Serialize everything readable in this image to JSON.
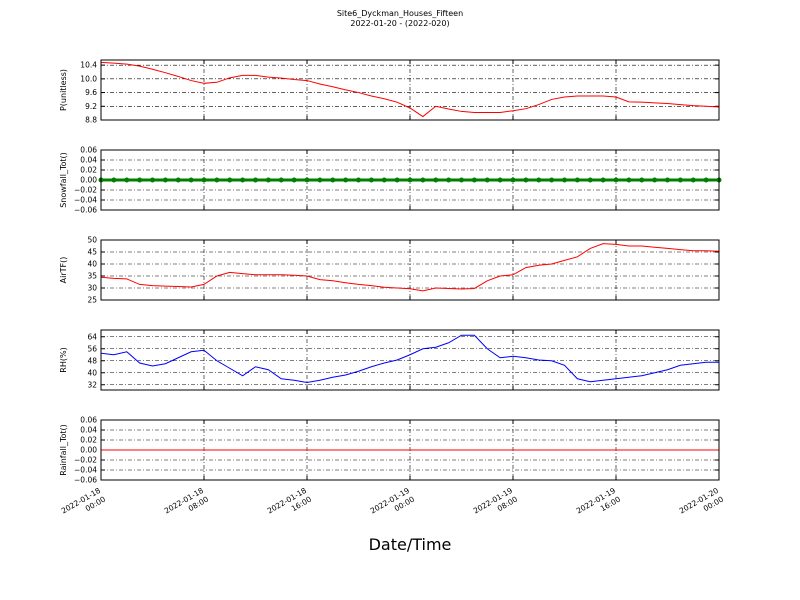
{
  "chart_data": [
    {
      "type": "line",
      "title": "Site6_Dyckman_Houses_Fifteen",
      "subtitle": "2022-01-20 - (2022-020)",
      "ylabel": "P(unitless)",
      "grid": true,
      "xlim": [
        "2022-01-18 00:00",
        "2022-01-20 00:00"
      ],
      "xticks": [
        "2022-01-18 00:00",
        "2022-01-18 08:00",
        "2022-01-18 16:00",
        "2022-01-19 00:00",
        "2022-01-19 08:00",
        "2022-01-19 16:00",
        "2022-01-20 00:00"
      ],
      "ylim": [
        8.8,
        10.55
      ],
      "yticks": [
        8.8,
        9.2,
        9.6,
        {
          "value": 10.0,
          "label": "10.0"
        },
        10.4
      ],
      "x": [
        "2022-01-18 00:00",
        "2022-01-18 01:00",
        "2022-01-18 02:00",
        "2022-01-18 03:00",
        "2022-01-18 04:00",
        "2022-01-18 05:00",
        "2022-01-18 06:00",
        "2022-01-18 07:00",
        "2022-01-18 08:00",
        "2022-01-18 09:00",
        "2022-01-18 10:00",
        "2022-01-18 11:00",
        "2022-01-18 12:00",
        "2022-01-18 13:00",
        "2022-01-18 14:00",
        "2022-01-18 15:00",
        "2022-01-18 16:00",
        "2022-01-18 17:00",
        "2022-01-18 18:00",
        "2022-01-18 19:00",
        "2022-01-18 20:00",
        "2022-01-18 21:00",
        "2022-01-18 22:00",
        "2022-01-18 23:00",
        "2022-01-19 00:00",
        "2022-01-19 01:00",
        "2022-01-19 02:00",
        "2022-01-19 03:00",
        "2022-01-19 04:00",
        "2022-01-19 05:00",
        "2022-01-19 06:00",
        "2022-01-19 07:00",
        "2022-01-19 08:00",
        "2022-01-19 09:00",
        "2022-01-19 10:00",
        "2022-01-19 11:00",
        "2022-01-19 12:00",
        "2022-01-19 13:00",
        "2022-01-19 14:00",
        "2022-01-19 15:00",
        "2022-01-19 16:00",
        "2022-01-19 17:00",
        "2022-01-19 18:00",
        "2022-01-19 19:00",
        "2022-01-19 20:00",
        "2022-01-19 21:00",
        "2022-01-19 22:00",
        "2022-01-19 23:00",
        "2022-01-20 00:00"
      ],
      "series": [
        {
          "name": "P",
          "color": "#ff0000",
          "values": [
            10.48,
            10.46,
            10.43,
            10.37,
            10.28,
            10.18,
            10.07,
            9.95,
            9.87,
            9.9,
            10.03,
            10.1,
            10.1,
            10.05,
            10.02,
            9.98,
            9.95,
            9.85,
            9.77,
            9.68,
            9.6,
            9.5,
            9.42,
            9.32,
            9.15,
            8.9,
            9.2,
            9.12,
            9.05,
            9.02,
            9.02,
            9.02,
            9.07,
            9.13,
            9.25,
            9.4,
            9.47,
            9.5,
            9.5,
            9.5,
            9.47,
            9.33,
            9.32,
            9.3,
            9.28,
            9.25,
            9.22,
            9.2,
            9.18
          ]
        }
      ]
    },
    {
      "type": "line",
      "ylabel": "Snowfall_Tot()",
      "grid": true,
      "xlim": [
        "2022-01-18 00:00",
        "2022-01-20 00:00"
      ],
      "xticks": [
        "2022-01-18 00:00",
        "2022-01-18 08:00",
        "2022-01-18 16:00",
        "2022-01-19 00:00",
        "2022-01-19 08:00",
        "2022-01-19 16:00",
        "2022-01-20 00:00"
      ],
      "ylim": [
        -0.06,
        0.06
      ],
      "yticks": [
        {
          "value": -0.06,
          "label": "−0.06"
        },
        {
          "value": -0.04,
          "label": "−0.04"
        },
        {
          "value": -0.02,
          "label": "−0.02"
        },
        {
          "value": 0,
          "label": "0.00"
        },
        0.02,
        0.04,
        0.06
      ],
      "x": [
        "2022-01-18 00:00",
        "2022-01-18 01:00",
        "2022-01-18 02:00",
        "2022-01-18 03:00",
        "2022-01-18 04:00",
        "2022-01-18 05:00",
        "2022-01-18 06:00",
        "2022-01-18 07:00",
        "2022-01-18 08:00",
        "2022-01-18 09:00",
        "2022-01-18 10:00",
        "2022-01-18 11:00",
        "2022-01-18 12:00",
        "2022-01-18 13:00",
        "2022-01-18 14:00",
        "2022-01-18 15:00",
        "2022-01-18 16:00",
        "2022-01-18 17:00",
        "2022-01-18 18:00",
        "2022-01-18 19:00",
        "2022-01-18 20:00",
        "2022-01-18 21:00",
        "2022-01-18 22:00",
        "2022-01-18 23:00",
        "2022-01-19 00:00",
        "2022-01-19 01:00",
        "2022-01-19 02:00",
        "2022-01-19 03:00",
        "2022-01-19 04:00",
        "2022-01-19 05:00",
        "2022-01-19 06:00",
        "2022-01-19 07:00",
        "2022-01-19 08:00",
        "2022-01-19 09:00",
        "2022-01-19 10:00",
        "2022-01-19 11:00",
        "2022-01-19 12:00",
        "2022-01-19 13:00",
        "2022-01-19 14:00",
        "2022-01-19 15:00",
        "2022-01-19 16:00",
        "2022-01-19 17:00",
        "2022-01-19 18:00",
        "2022-01-19 19:00",
        "2022-01-19 20:00",
        "2022-01-19 21:00",
        "2022-01-19 22:00",
        "2022-01-19 23:00",
        "2022-01-20 00:00"
      ],
      "series": [
        {
          "name": "Snowfall_Tot",
          "color": "#008000",
          "marker": true,
          "values": [
            0,
            0,
            0,
            0,
            0,
            0,
            0,
            0,
            0,
            0,
            0,
            0,
            0,
            0,
            0,
            0,
            0,
            0,
            0,
            0,
            0,
            0,
            0,
            0,
            0,
            0,
            0,
            0,
            0,
            0,
            0,
            0,
            0,
            0,
            0,
            0,
            0,
            0,
            0,
            0,
            0,
            0,
            0,
            0,
            0,
            0,
            0,
            0,
            0
          ]
        }
      ]
    },
    {
      "type": "line",
      "ylabel": "AirTF()",
      "grid": true,
      "xlim": [
        "2022-01-18 00:00",
        "2022-01-20 00:00"
      ],
      "xticks": [
        "2022-01-18 00:00",
        "2022-01-18 08:00",
        "2022-01-18 16:00",
        "2022-01-19 00:00",
        "2022-01-19 08:00",
        "2022-01-19 16:00",
        "2022-01-20 00:00"
      ],
      "ylim": [
        25,
        50
      ],
      "yticks": [
        25,
        30,
        35,
        40,
        45,
        50
      ],
      "x": [
        "2022-01-18 00:00",
        "2022-01-18 01:00",
        "2022-01-18 02:00",
        "2022-01-18 03:00",
        "2022-01-18 04:00",
        "2022-01-18 05:00",
        "2022-01-18 06:00",
        "2022-01-18 07:00",
        "2022-01-18 08:00",
        "2022-01-18 09:00",
        "2022-01-18 10:00",
        "2022-01-18 11:00",
        "2022-01-18 12:00",
        "2022-01-18 13:00",
        "2022-01-18 14:00",
        "2022-01-18 15:00",
        "2022-01-18 16:00",
        "2022-01-18 17:00",
        "2022-01-18 18:00",
        "2022-01-18 19:00",
        "2022-01-18 20:00",
        "2022-01-18 21:00",
        "2022-01-18 22:00",
        "2022-01-18 23:00",
        "2022-01-19 00:00",
        "2022-01-19 01:00",
        "2022-01-19 02:00",
        "2022-01-19 03:00",
        "2022-01-19 04:00",
        "2022-01-19 05:00",
        "2022-01-19 06:00",
        "2022-01-19 07:00",
        "2022-01-19 08:00",
        "2022-01-19 09:00",
        "2022-01-19 10:00",
        "2022-01-19 11:00",
        "2022-01-19 12:00",
        "2022-01-19 13:00",
        "2022-01-19 14:00",
        "2022-01-19 15:00",
        "2022-01-19 16:00",
        "2022-01-19 17:00",
        "2022-01-19 18:00",
        "2022-01-19 19:00",
        "2022-01-19 20:00",
        "2022-01-19 21:00",
        "2022-01-19 22:00",
        "2022-01-19 23:00",
        "2022-01-20 00:00"
      ],
      "series": [
        {
          "name": "AirTF",
          "color": "#ff0000",
          "values": [
            34.5,
            34,
            33.8,
            31.5,
            31,
            30.8,
            30.6,
            30.4,
            31.5,
            35,
            36.5,
            36,
            35.5,
            35.5,
            35.5,
            35.3,
            35,
            33.5,
            33,
            32.2,
            31.5,
            31,
            30.3,
            30,
            29.7,
            28.8,
            30,
            29.8,
            29.6,
            29.8,
            33,
            35,
            35.5,
            38.5,
            39.5,
            40,
            41.5,
            43,
            46.5,
            48.5,
            48.2,
            47.5,
            47.5,
            47,
            46.5,
            46,
            45.5,
            45.5,
            45.3
          ]
        }
      ]
    },
    {
      "type": "line",
      "ylabel": "RH(%)",
      "grid": true,
      "xlim": [
        "2022-01-18 00:00",
        "2022-01-20 00:00"
      ],
      "xticks": [
        "2022-01-18 00:00",
        "2022-01-18 08:00",
        "2022-01-18 16:00",
        "2022-01-19 00:00",
        "2022-01-19 08:00",
        "2022-01-19 16:00",
        "2022-01-20 00:00"
      ],
      "ylim": [
        28.5,
        68.5
      ],
      "yticks": [
        32,
        40,
        48,
        56,
        64
      ],
      "x": [
        "2022-01-18 00:00",
        "2022-01-18 01:00",
        "2022-01-18 02:00",
        "2022-01-18 03:00",
        "2022-01-18 04:00",
        "2022-01-18 05:00",
        "2022-01-18 06:00",
        "2022-01-18 07:00",
        "2022-01-18 08:00",
        "2022-01-18 09:00",
        "2022-01-18 10:00",
        "2022-01-18 11:00",
        "2022-01-18 12:00",
        "2022-01-18 13:00",
        "2022-01-18 14:00",
        "2022-01-18 15:00",
        "2022-01-18 16:00",
        "2022-01-18 17:00",
        "2022-01-18 18:00",
        "2022-01-18 19:00",
        "2022-01-18 20:00",
        "2022-01-18 21:00",
        "2022-01-18 22:00",
        "2022-01-18 23:00",
        "2022-01-19 00:00",
        "2022-01-19 01:00",
        "2022-01-19 02:00",
        "2022-01-19 03:00",
        "2022-01-19 04:00",
        "2022-01-19 05:00",
        "2022-01-19 06:00",
        "2022-01-19 07:00",
        "2022-01-19 08:00",
        "2022-01-19 09:00",
        "2022-01-19 10:00",
        "2022-01-19 11:00",
        "2022-01-19 12:00",
        "2022-01-19 13:00",
        "2022-01-19 14:00",
        "2022-01-19 15:00",
        "2022-01-19 16:00",
        "2022-01-19 17:00",
        "2022-01-19 18:00",
        "2022-01-19 19:00",
        "2022-01-19 20:00",
        "2022-01-19 21:00",
        "2022-01-19 22:00",
        "2022-01-19 23:00",
        "2022-01-20 00:00"
      ],
      "series": [
        {
          "name": "RH",
          "color": "#0000ff",
          "values": [
            53,
            52,
            54,
            46.5,
            44.5,
            46,
            50,
            54,
            55,
            48,
            43,
            38,
            44,
            42,
            36,
            35,
            33.5,
            35,
            37,
            38.5,
            41,
            44,
            46.5,
            48.5,
            52,
            56,
            57,
            60,
            65,
            65,
            56,
            50,
            51,
            50,
            48.5,
            48,
            45,
            36,
            34,
            35,
            36,
            37,
            38,
            40,
            42,
            45,
            46,
            47,
            47
          ]
        }
      ]
    },
    {
      "type": "line",
      "ylabel": "Rainfall_Tot()",
      "xlabel": "Date/Time",
      "grid": true,
      "xlim": [
        "2022-01-18 00:00",
        "2022-01-20 00:00"
      ],
      "xticks": [
        {
          "value": "2022-01-18 00:00",
          "label": [
            "2022-01-18",
            "00:00"
          ]
        },
        {
          "value": "2022-01-18 08:00",
          "label": [
            "2022-01-18",
            "08:00"
          ]
        },
        {
          "value": "2022-01-18 16:00",
          "label": [
            "2022-01-18",
            "16:00"
          ]
        },
        {
          "value": "2022-01-19 00:00",
          "label": [
            "2022-01-19",
            "00:00"
          ]
        },
        {
          "value": "2022-01-19 08:00",
          "label": [
            "2022-01-19",
            "08:00"
          ]
        },
        {
          "value": "2022-01-19 16:00",
          "label": [
            "2022-01-19",
            "16:00"
          ]
        },
        {
          "value": "2022-01-20 00:00",
          "label": [
            "2022-01-20",
            "00:00"
          ]
        }
      ],
      "ylim": [
        -0.06,
        0.06
      ],
      "yticks": [
        {
          "value": -0.06,
          "label": "−0.06"
        },
        {
          "value": -0.04,
          "label": "−0.04"
        },
        {
          "value": -0.02,
          "label": "−0.02"
        },
        {
          "value": 0,
          "label": "0.00"
        },
        0.02,
        0.04,
        0.06
      ],
      "x": [
        "2022-01-18 00:00",
        "2022-01-18 01:00",
        "2022-01-18 02:00",
        "2022-01-18 03:00",
        "2022-01-18 04:00",
        "2022-01-18 05:00",
        "2022-01-18 06:00",
        "2022-01-18 07:00",
        "2022-01-18 08:00",
        "2022-01-18 09:00",
        "2022-01-18 10:00",
        "2022-01-18 11:00",
        "2022-01-18 12:00",
        "2022-01-18 13:00",
        "2022-01-18 14:00",
        "2022-01-18 15:00",
        "2022-01-18 16:00",
        "2022-01-18 17:00",
        "2022-01-18 18:00",
        "2022-01-18 19:00",
        "2022-01-18 20:00",
        "2022-01-18 21:00",
        "2022-01-18 22:00",
        "2022-01-18 23:00",
        "2022-01-19 00:00",
        "2022-01-19 01:00",
        "2022-01-19 02:00",
        "2022-01-19 03:00",
        "2022-01-19 04:00",
        "2022-01-19 05:00",
        "2022-01-19 06:00",
        "2022-01-19 07:00",
        "2022-01-19 08:00",
        "2022-01-19 09:00",
        "2022-01-19 10:00",
        "2022-01-19 11:00",
        "2022-01-19 12:00",
        "2022-01-19 13:00",
        "2022-01-19 14:00",
        "2022-01-19 15:00",
        "2022-01-19 16:00",
        "2022-01-19 17:00",
        "2022-01-19 18:00",
        "2022-01-19 19:00",
        "2022-01-19 20:00",
        "2022-01-19 21:00",
        "2022-01-19 22:00",
        "2022-01-19 23:00",
        "2022-01-20 00:00"
      ],
      "series": [
        {
          "name": "Rainfall_Tot",
          "color": "#ff0000",
          "values": [
            0,
            0,
            0,
            0,
            0,
            0,
            0,
            0,
            0,
            0,
            0,
            0,
            0,
            0,
            0,
            0,
            0,
            0,
            0,
            0,
            0,
            0,
            0,
            0,
            0,
            0,
            0,
            0,
            0,
            0,
            0,
            0,
            0,
            0,
            0,
            0,
            0,
            0,
            0,
            0,
            0,
            0,
            0,
            0,
            0,
            0,
            0,
            0,
            0
          ]
        }
      ]
    }
  ]
}
